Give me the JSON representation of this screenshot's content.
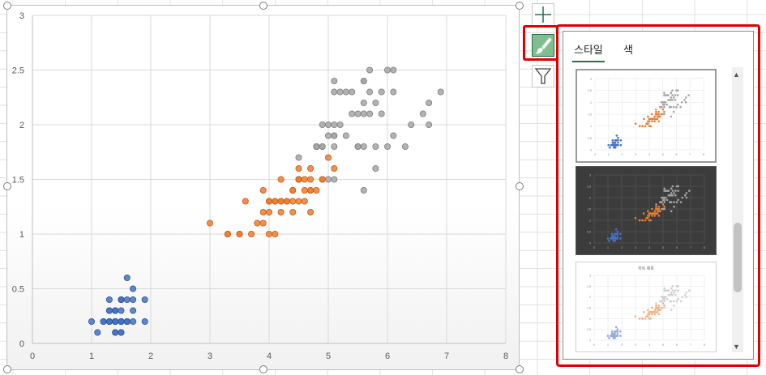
{
  "chart_data": {
    "type": "scatter",
    "xlim": [
      0,
      8
    ],
    "ylim": [
      0,
      3
    ],
    "x_ticks": [
      "0",
      "1",
      "2",
      "3",
      "4",
      "5",
      "6",
      "7",
      "8"
    ],
    "y_ticks": [
      "0",
      "0.5",
      "1",
      "1.5",
      "2",
      "2.5",
      "3"
    ],
    "grid": true,
    "legend": "none",
    "series": [
      {
        "color": "#4472c4",
        "points": [
          [
            1.4,
            0.2
          ],
          [
            1.4,
            0.2
          ],
          [
            1.3,
            0.2
          ],
          [
            1.5,
            0.2
          ],
          [
            1.4,
            0.2
          ],
          [
            1.7,
            0.4
          ],
          [
            1.4,
            0.3
          ],
          [
            1.5,
            0.2
          ],
          [
            1.4,
            0.2
          ],
          [
            1.5,
            0.1
          ],
          [
            1.5,
            0.2
          ],
          [
            1.6,
            0.2
          ],
          [
            1.4,
            0.1
          ],
          [
            1.1,
            0.1
          ],
          [
            1.2,
            0.2
          ],
          [
            1.5,
            0.4
          ],
          [
            1.3,
            0.4
          ],
          [
            1.4,
            0.3
          ],
          [
            1.7,
            0.3
          ],
          [
            1.5,
            0.3
          ],
          [
            1.7,
            0.2
          ],
          [
            1.5,
            0.4
          ],
          [
            1.0,
            0.2
          ],
          [
            1.7,
            0.5
          ],
          [
            1.9,
            0.2
          ],
          [
            1.6,
            0.2
          ],
          [
            1.6,
            0.4
          ],
          [
            1.5,
            0.2
          ],
          [
            1.4,
            0.2
          ],
          [
            1.6,
            0.2
          ],
          [
            1.6,
            0.2
          ],
          [
            1.5,
            0.4
          ],
          [
            1.5,
            0.1
          ],
          [
            1.4,
            0.2
          ],
          [
            1.5,
            0.2
          ],
          [
            1.2,
            0.2
          ],
          [
            1.3,
            0.2
          ],
          [
            1.4,
            0.1
          ],
          [
            1.3,
            0.2
          ],
          [
            1.5,
            0.2
          ],
          [
            1.3,
            0.3
          ],
          [
            1.3,
            0.3
          ],
          [
            1.3,
            0.2
          ],
          [
            1.6,
            0.6
          ],
          [
            1.9,
            0.4
          ],
          [
            1.4,
            0.3
          ],
          [
            1.6,
            0.2
          ],
          [
            1.4,
            0.2
          ],
          [
            1.5,
            0.2
          ],
          [
            1.4,
            0.2
          ]
        ]
      },
      {
        "color": "#ed7d31",
        "points": [
          [
            4.7,
            1.4
          ],
          [
            4.5,
            1.5
          ],
          [
            4.9,
            1.5
          ],
          [
            4.0,
            1.3
          ],
          [
            4.6,
            1.5
          ],
          [
            4.5,
            1.3
          ],
          [
            4.7,
            1.6
          ],
          [
            3.3,
            1.0
          ],
          [
            4.6,
            1.3
          ],
          [
            3.9,
            1.4
          ],
          [
            3.5,
            1.0
          ],
          [
            4.2,
            1.5
          ],
          [
            4.0,
            1.0
          ],
          [
            4.7,
            1.4
          ],
          [
            3.6,
            1.3
          ],
          [
            4.4,
            1.4
          ],
          [
            4.5,
            1.5
          ],
          [
            4.1,
            1.0
          ],
          [
            4.5,
            1.5
          ],
          [
            3.9,
            1.1
          ],
          [
            4.8,
            1.8
          ],
          [
            4.0,
            1.3
          ],
          [
            4.9,
            1.5
          ],
          [
            4.7,
            1.2
          ],
          [
            4.3,
            1.3
          ],
          [
            4.4,
            1.4
          ],
          [
            4.8,
            1.4
          ],
          [
            5.0,
            1.7
          ],
          [
            4.5,
            1.5
          ],
          [
            3.5,
            1.0
          ],
          [
            3.8,
            1.1
          ],
          [
            3.7,
            1.0
          ],
          [
            3.9,
            1.2
          ],
          [
            5.1,
            1.6
          ],
          [
            4.5,
            1.5
          ],
          [
            4.5,
            1.6
          ],
          [
            4.7,
            1.5
          ],
          [
            4.4,
            1.3
          ],
          [
            4.1,
            1.3
          ],
          [
            4.0,
            1.3
          ],
          [
            4.4,
            1.2
          ],
          [
            4.6,
            1.4
          ],
          [
            4.0,
            1.2
          ],
          [
            3.3,
            1.0
          ],
          [
            4.2,
            1.3
          ],
          [
            4.2,
            1.2
          ],
          [
            4.2,
            1.3
          ],
          [
            4.3,
            1.3
          ],
          [
            3.0,
            1.1
          ],
          [
            4.1,
            1.3
          ]
        ]
      },
      {
        "color": "#a5a5a5",
        "points": [
          [
            6.0,
            2.5
          ],
          [
            5.1,
            1.9
          ],
          [
            5.9,
            2.1
          ],
          [
            5.6,
            1.8
          ],
          [
            5.8,
            2.2
          ],
          [
            6.6,
            2.1
          ],
          [
            4.5,
            1.7
          ],
          [
            6.3,
            1.8
          ],
          [
            5.8,
            1.8
          ],
          [
            6.1,
            2.5
          ],
          [
            5.1,
            2.0
          ],
          [
            5.3,
            1.9
          ],
          [
            5.5,
            2.1
          ],
          [
            5.0,
            2.0
          ],
          [
            5.1,
            2.4
          ],
          [
            5.3,
            2.3
          ],
          [
            5.5,
            1.8
          ],
          [
            6.7,
            2.2
          ],
          [
            6.9,
            2.3
          ],
          [
            5.0,
            1.5
          ],
          [
            5.7,
            2.3
          ],
          [
            4.9,
            2.0
          ],
          [
            6.7,
            2.0
          ],
          [
            4.9,
            1.8
          ],
          [
            5.7,
            2.1
          ],
          [
            6.0,
            1.8
          ],
          [
            4.8,
            1.8
          ],
          [
            4.9,
            1.8
          ],
          [
            5.6,
            2.1
          ],
          [
            5.8,
            1.6
          ],
          [
            6.1,
            1.9
          ],
          [
            6.4,
            2.0
          ],
          [
            5.6,
            2.2
          ],
          [
            5.1,
            1.5
          ],
          [
            5.6,
            1.4
          ],
          [
            6.1,
            2.3
          ],
          [
            5.6,
            2.4
          ],
          [
            5.5,
            1.8
          ],
          [
            4.8,
            1.8
          ],
          [
            5.4,
            2.1
          ],
          [
            5.6,
            2.4
          ],
          [
            5.1,
            2.3
          ],
          [
            5.1,
            1.9
          ],
          [
            5.9,
            2.3
          ],
          [
            5.7,
            2.5
          ],
          [
            5.2,
            2.3
          ],
          [
            5.0,
            1.9
          ],
          [
            5.2,
            2.0
          ],
          [
            5.4,
            2.3
          ],
          [
            5.1,
            1.8
          ]
        ]
      }
    ]
  },
  "chart_buttons": [
    {
      "icon": "plus-icon",
      "label": "Chart Elements"
    },
    {
      "icon": "brush-icon",
      "label": "Chart Styles"
    },
    {
      "icon": "funnel-icon",
      "label": "Chart Filters"
    }
  ],
  "style_panel": {
    "tabs": [
      "스타일",
      "색"
    ],
    "active_tab": "스타일",
    "thumbnails": [
      {
        "theme": "light",
        "title": ""
      },
      {
        "theme": "dark",
        "title": ""
      },
      {
        "theme": "light-pastel",
        "title": "차트 제목"
      }
    ],
    "scroll_position": 0.55
  },
  "highlight_color": "#e00000",
  "accent_color": "#217346"
}
